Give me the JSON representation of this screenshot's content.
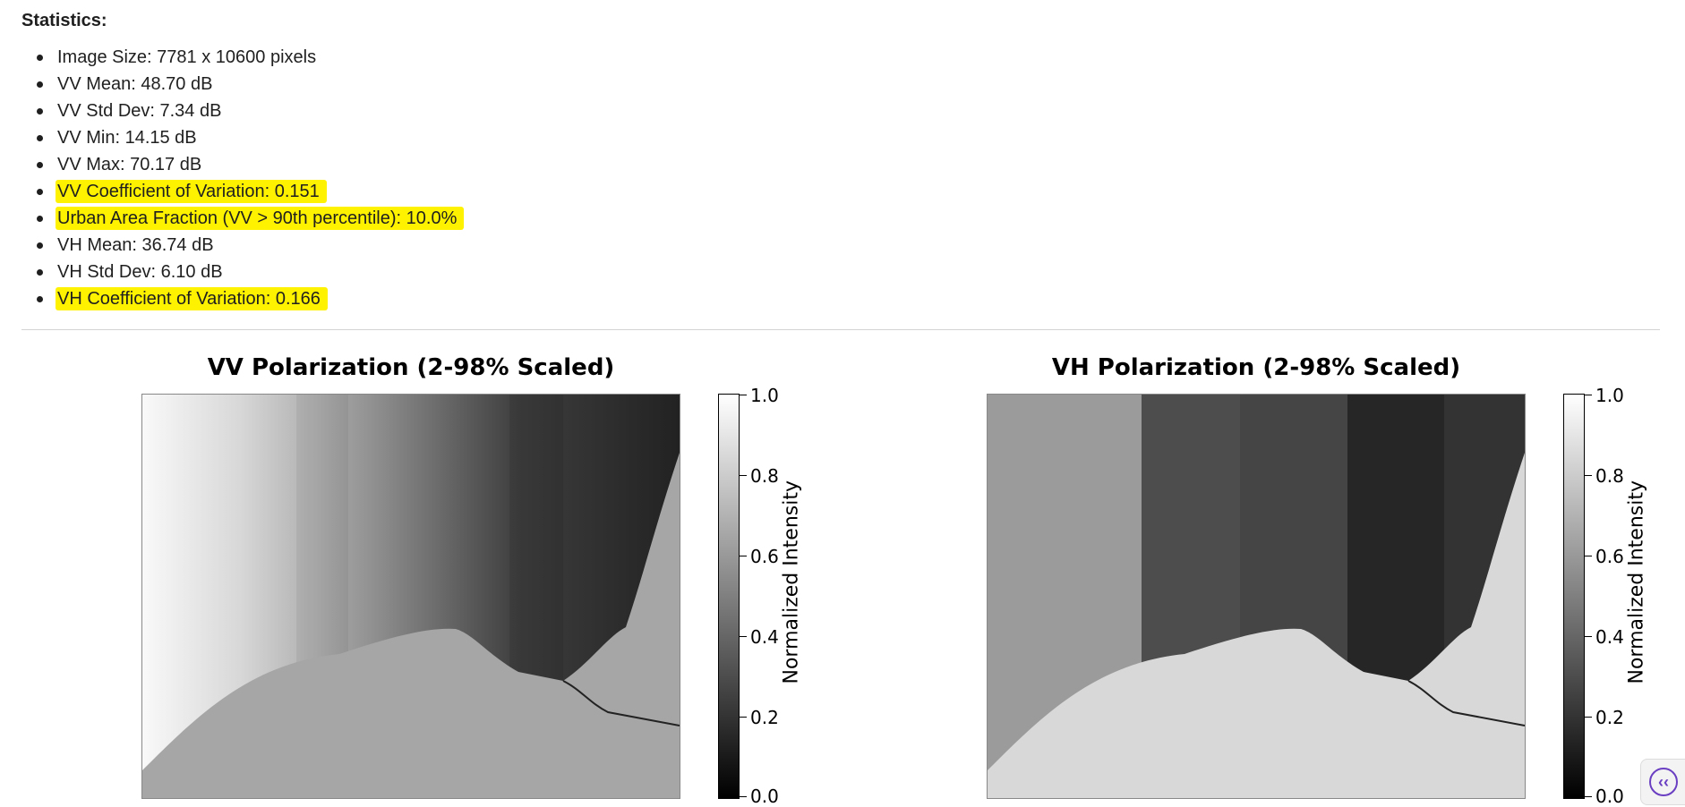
{
  "stats": {
    "title": "Statistics:",
    "items": [
      {
        "text": "Image Size: 7781 x 10600 pixels",
        "highlight": false
      },
      {
        "text": "VV Mean: 48.70 dB",
        "highlight": false
      },
      {
        "text": "VV Std Dev: 7.34 dB",
        "highlight": false
      },
      {
        "text": "VV Min: 14.15 dB",
        "highlight": false
      },
      {
        "text": "VV Max: 70.17 dB",
        "highlight": false
      },
      {
        "text": "VV Coefficient of Variation: 0.151",
        "highlight": true
      },
      {
        "text": "Urban Area Fraction (VV > 90th percentile): 10.0%",
        "highlight": true
      },
      {
        "text": "VH Mean: 36.74 dB",
        "highlight": false
      },
      {
        "text": "VH Std Dev: 6.10 dB",
        "highlight": false
      },
      {
        "text": "VH Coefficient of Variation: 0.166",
        "highlight": true
      }
    ],
    "highlight_color": "#fff200"
  },
  "panels": [
    {
      "title": "VV Polarization (2-98% Scaled)",
      "colorbar_label": "Normalized Intensity",
      "ticks": [
        "1.0",
        "0.8",
        "0.6",
        "0.4",
        "0.2",
        "0.0"
      ]
    },
    {
      "title": "VH Polarization (2-98% Scaled)",
      "colorbar_label": "Normalized Intensity",
      "ticks": [
        "1.0",
        "0.8",
        "0.6",
        "0.4",
        "0.2",
        "0.0"
      ]
    }
  ],
  "side_button": {
    "icon": "chevrons-left-icon",
    "glyph": "‹‹"
  }
}
